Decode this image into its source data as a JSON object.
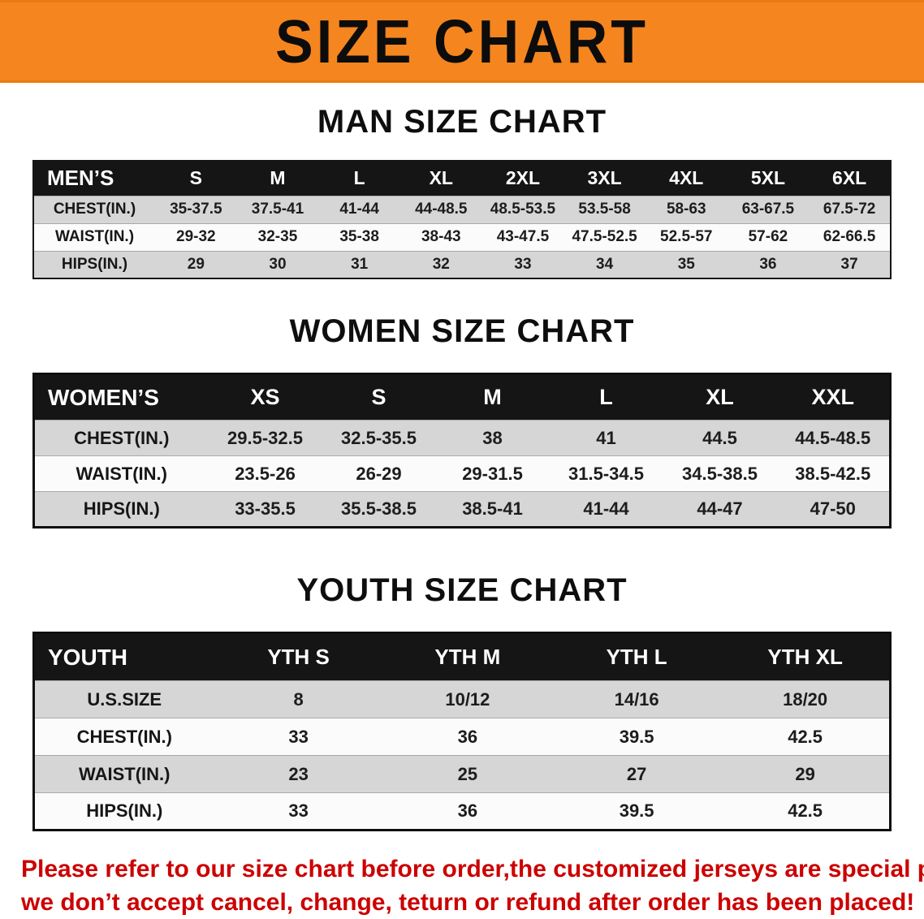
{
  "banner": {
    "title": "SIZE CHART"
  },
  "colors": {
    "banner_bg": "#f5851f",
    "table_header_bg": "#151515",
    "table_header_text": "#ffffff",
    "row_alt_bg": "#d6d6d6",
    "disclaimer_text": "#cc0000"
  },
  "sections": [
    {
      "heading": "MAN SIZE CHART",
      "table": {
        "header": [
          "MEN’S",
          "S",
          "M",
          "L",
          "XL",
          "2XL",
          "3XL",
          "4XL",
          "5XL",
          "6XL"
        ],
        "rows": [
          {
            "label": "CHEST(IN.)",
            "values": [
              "35-37.5",
              "37.5-41",
              "41-44",
              "44-48.5",
              "48.5-53.5",
              "53.5-58",
              "58-63",
              "63-67.5",
              "67.5-72"
            ]
          },
          {
            "label": "WAIST(IN.)",
            "values": [
              "29-32",
              "32-35",
              "35-38",
              "38-43",
              "43-47.5",
              "47.5-52.5",
              "52.5-57",
              "57-62",
              "62-66.5"
            ]
          },
          {
            "label": "HIPS(IN.)",
            "values": [
              "29",
              "30",
              "31",
              "32",
              "33",
              "34",
              "35",
              "36",
              "37"
            ]
          }
        ]
      }
    },
    {
      "heading": "WOMEN SIZE CHART",
      "table": {
        "header": [
          "WOMEN’S",
          "XS",
          "S",
          "M",
          "L",
          "XL",
          "XXL"
        ],
        "rows": [
          {
            "label": "CHEST(IN.)",
            "values": [
              "29.5-32.5",
              "32.5-35.5",
              "38",
              "41",
              "44.5",
              "44.5-48.5"
            ]
          },
          {
            "label": "WAIST(IN.)",
            "values": [
              "23.5-26",
              "26-29",
              "29-31.5",
              "31.5-34.5",
              "34.5-38.5",
              "38.5-42.5"
            ]
          },
          {
            "label": "HIPS(IN.)",
            "values": [
              "33-35.5",
              "35.5-38.5",
              "38.5-41",
              "41-44",
              "44-47",
              "47-50"
            ]
          }
        ]
      }
    },
    {
      "heading": "YOUTH SIZE CHART",
      "table": {
        "header": [
          "YOUTH",
          "YTH S",
          "YTH M",
          "YTH L",
          "YTH XL"
        ],
        "rows": [
          {
            "label": "U.S.SIZE",
            "values": [
              "8",
              "10/12",
              "14/16",
              "18/20"
            ]
          },
          {
            "label": "CHEST(IN.)",
            "values": [
              "33",
              "36",
              "39.5",
              "42.5"
            ]
          },
          {
            "label": "WAIST(IN.)",
            "values": [
              "23",
              "25",
              "27",
              "29"
            ]
          },
          {
            "label": "HIPS(IN.)",
            "values": [
              "33",
              "36",
              "39.5",
              "42.5"
            ]
          }
        ]
      }
    }
  ],
  "disclaimer": {
    "line1": "Please refer to our size chart before order,the customized jerseys are special products,",
    "line2": "we don’t accept cancel, change, teturn or refund after order has been placed!"
  }
}
